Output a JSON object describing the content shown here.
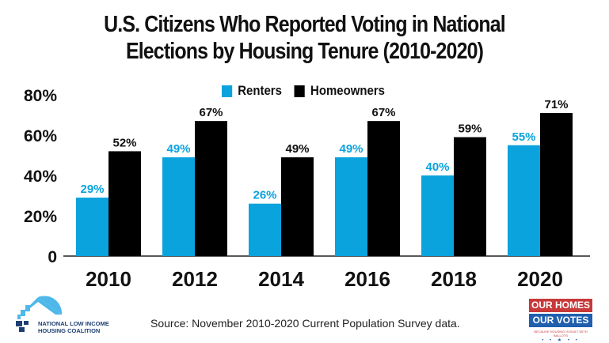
{
  "chart_data": {
    "type": "bar",
    "title": "U.S. Citizens Who Reported Voting in National Elections by Housing Tenure (2010-2020)",
    "title_lines": [
      "U.S. Citizens Who Reported Voting in National",
      "Elections by Housing Tenure (2010-2020)"
    ],
    "xlabel": "",
    "ylabel": "",
    "categories": [
      "2010",
      "2012",
      "2014",
      "2016",
      "2018",
      "2020"
    ],
    "series": [
      {
        "name": "Renters",
        "color": "#0aa3dd",
        "values": [
          29,
          49,
          26,
          49,
          40,
          55
        ],
        "labels": [
          "29%",
          "49%",
          "26%",
          "49%",
          "40%",
          "55%"
        ]
      },
      {
        "name": "Homeowners",
        "color": "#000000",
        "values": [
          52,
          67,
          49,
          67,
          59,
          71
        ],
        "labels": [
          "52%",
          "67%",
          "49%",
          "67%",
          "59%",
          "71%"
        ]
      }
    ],
    "ylim": [
      0,
      80
    ],
    "yticks": [
      0,
      20,
      40,
      60,
      80
    ],
    "ytick_labels": [
      "0",
      "20%",
      "40%",
      "60%",
      "80%"
    ],
    "grid": false,
    "legend_position": "top-center"
  },
  "source": "Source: November 2010-2020 Current Population Survey data.",
  "logos": {
    "nlihc": {
      "line1": "NATIONAL LOW INCOME",
      "line2": "HOUSING COALITION"
    },
    "campaign": {
      "line1": "OUR HOMES",
      "line2": "OUR VOTES",
      "tagline": "BECAUSE HOUSING IS BUILT WITH BALLOTS",
      "stars": "• • ★ • •"
    }
  }
}
